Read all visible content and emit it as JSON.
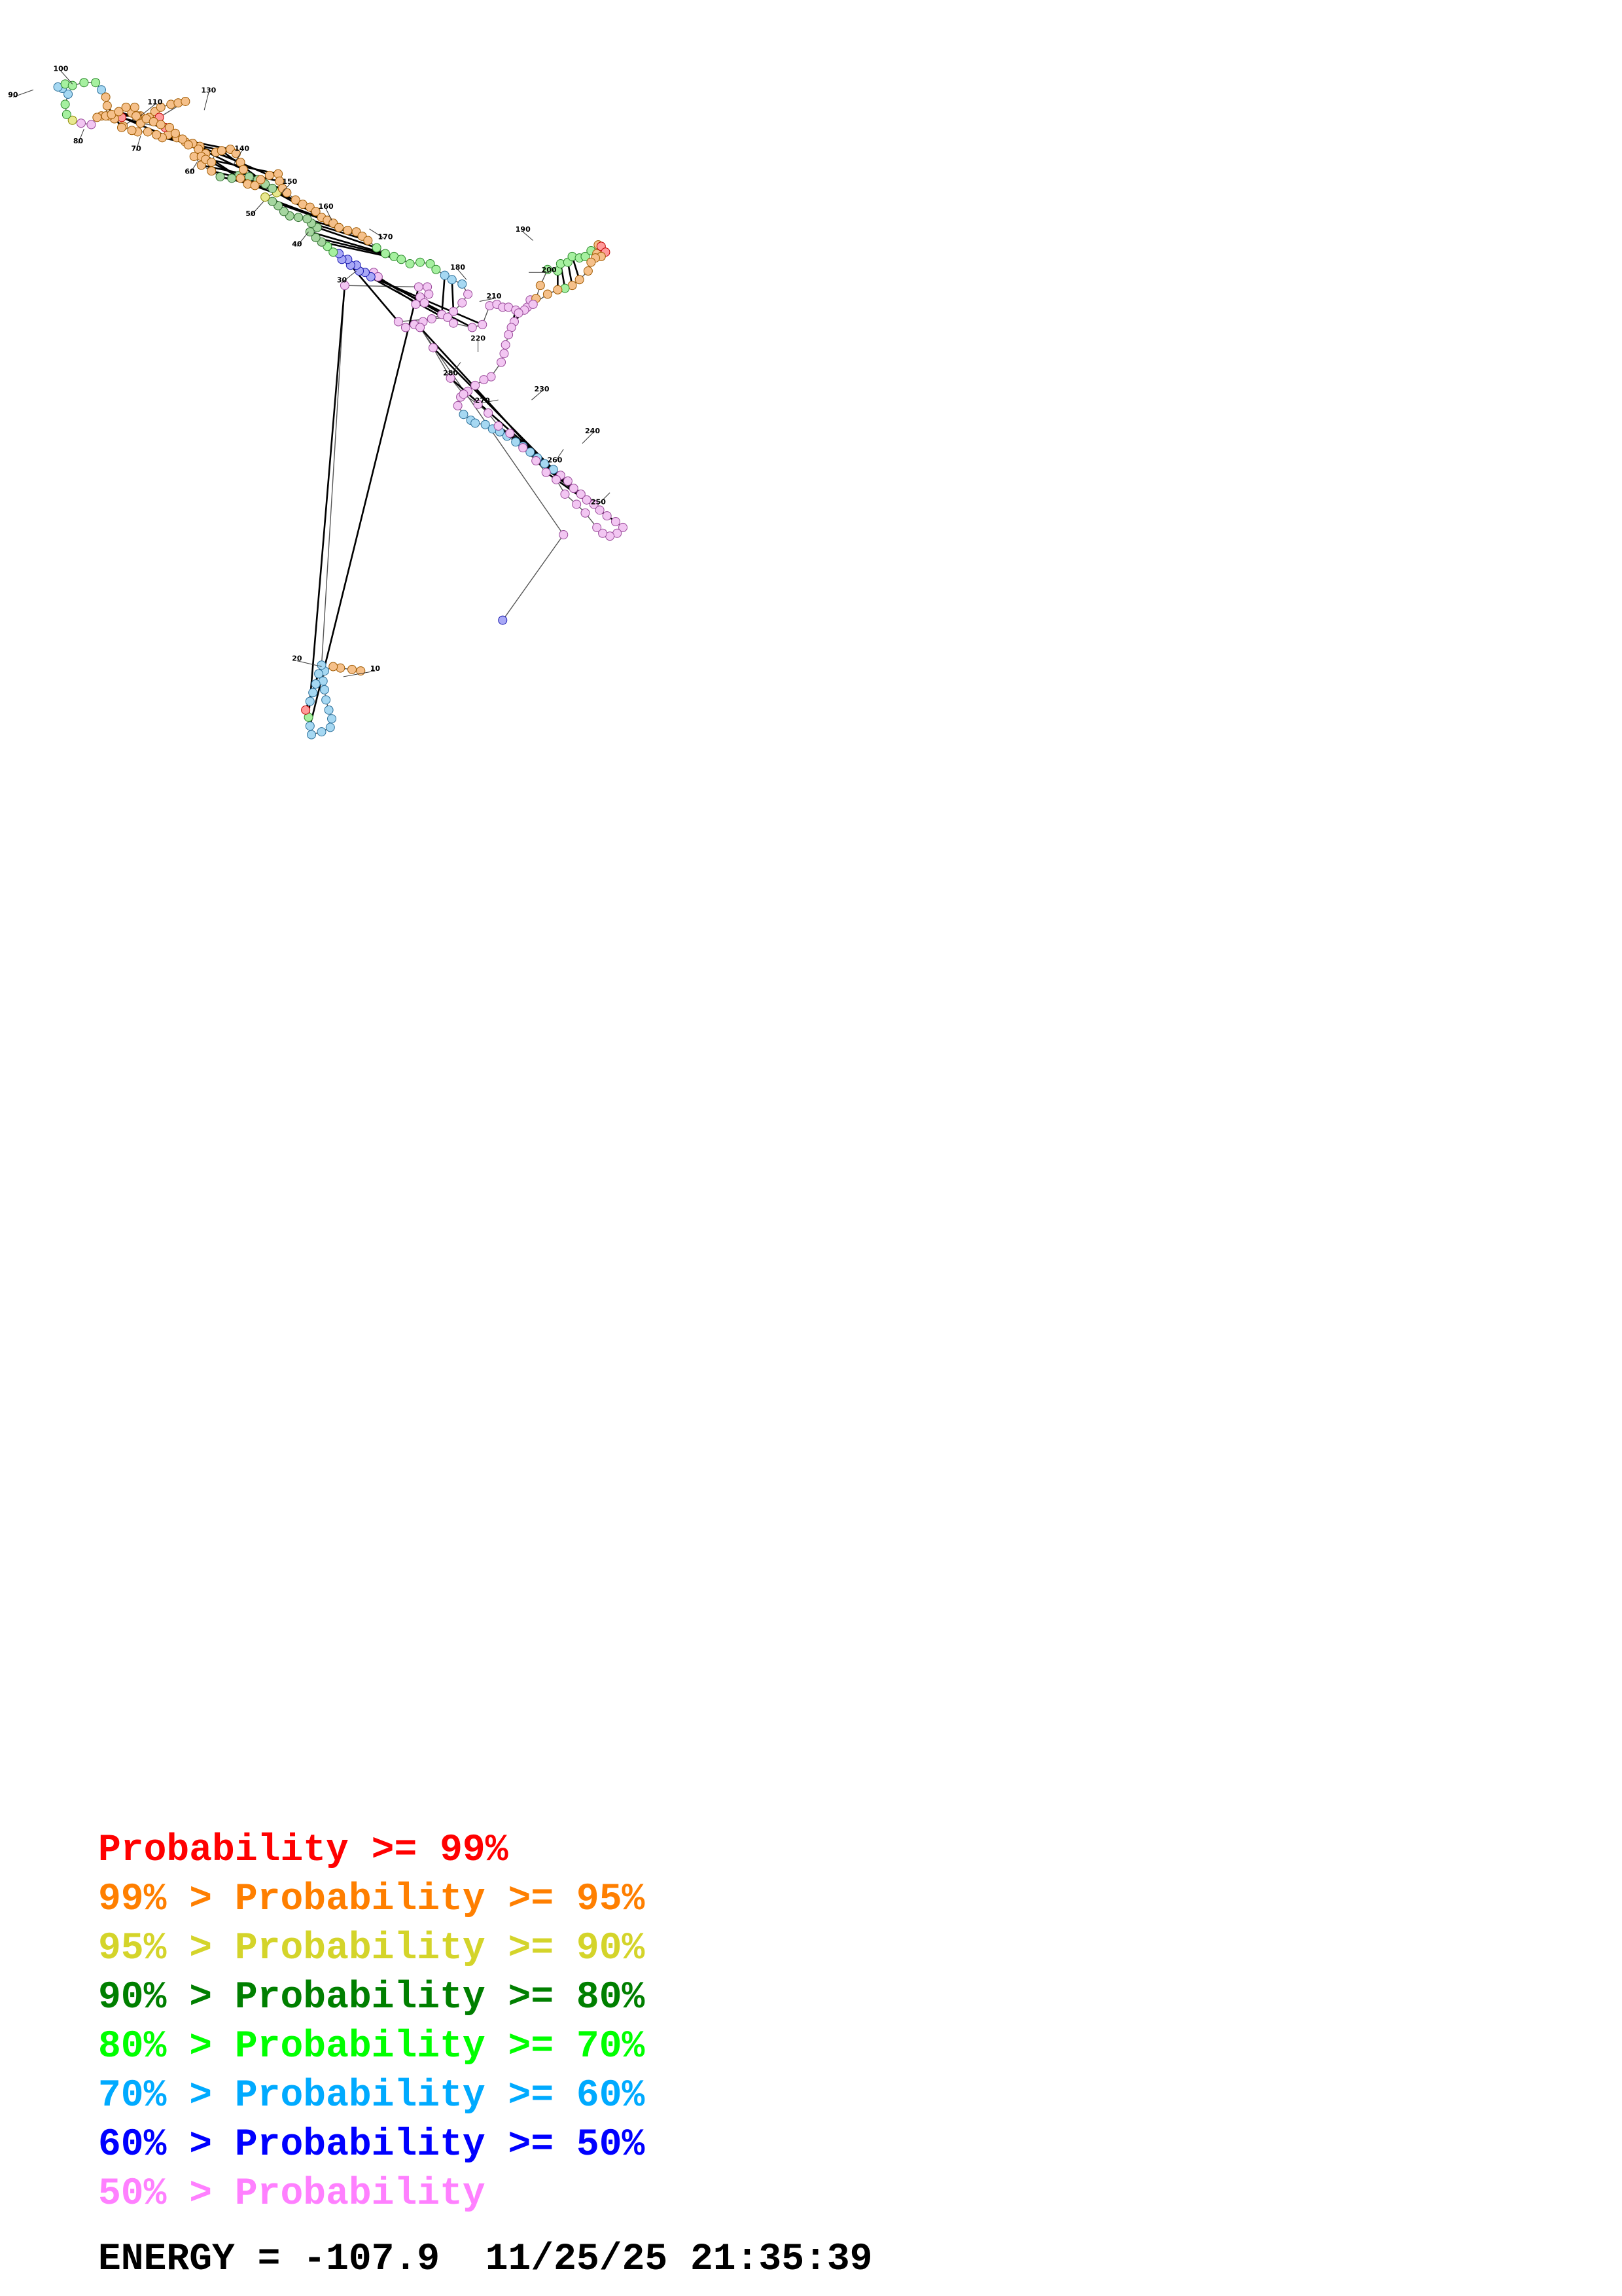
{
  "diagram": {
    "kind": "RNA secondary structure",
    "position_labels": [
      "10",
      "20",
      "30",
      "40",
      "50",
      "60",
      "70",
      "80",
      "90",
      "100",
      "110",
      "130",
      "140",
      "150",
      "160",
      "170",
      "180",
      "190",
      "200",
      "210",
      "220",
      "230",
      "240",
      "250",
      "260",
      "270",
      "280"
    ]
  },
  "legend": {
    "rows": [
      {
        "prefix": "",
        "label": "Probability >= 99%",
        "color": "#ff0000"
      },
      {
        "prefix": "99% > ",
        "label": "Probability >= 95%",
        "color": "#ff7f00"
      },
      {
        "prefix": "95% > ",
        "label": "Probability >= 90%",
        "color": "#d4d42a"
      },
      {
        "prefix": "90% > ",
        "label": "Probability >= 80%",
        "color": "#007f00"
      },
      {
        "prefix": "80% > ",
        "label": "Probability >= 70%",
        "color": "#00ff00"
      },
      {
        "prefix": "70% > ",
        "label": "Probability >= 60%",
        "color": "#00aaff"
      },
      {
        "prefix": "60% > ",
        "label": "Probability >= 50%",
        "color": "#0000ff"
      },
      {
        "prefix": "50% > ",
        "label": "Probability",
        "color": "#ff80ff"
      }
    ]
  },
  "energy": {
    "label": "ENERGY = ",
    "value": "-107.9",
    "date": "11/25/25",
    "time": "21:35:39"
  }
}
